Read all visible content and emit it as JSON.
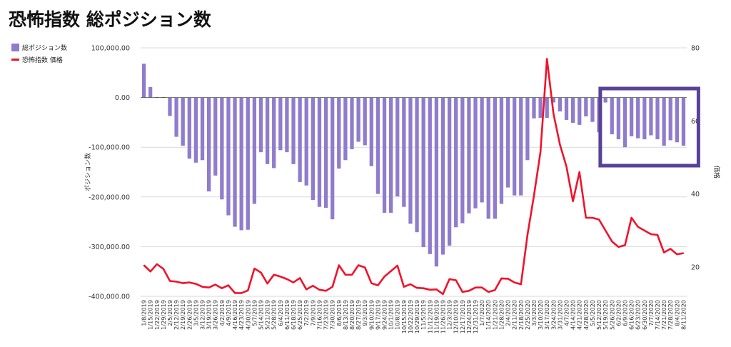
{
  "title": "恐怖指数 総ポジション数",
  "legend": {
    "bar_label": "総ポジション数",
    "line_label": "恐怖指数 価格"
  },
  "colors": {
    "bar": "#8f7ccc",
    "line": "#f0132a",
    "highlight_box": "#5a4197",
    "grid": "#d9d9d9"
  },
  "chart_data": {
    "type": "bar+line",
    "categories": [
      "1/8/2019",
      "1/15/2019",
      "1/22/2019",
      "1/29/2019",
      "2/5/2019",
      "2/12/2019",
      "2/19/2019",
      "2/26/2019",
      "3/5/2019",
      "3/12/2019",
      "3/19/2019",
      "3/26/2019",
      "4/2/2019",
      "4/9/2019",
      "4/16/2019",
      "4/23/2019",
      "4/30/2019",
      "5/7/2019",
      "5/14/2019",
      "5/21/2019",
      "5/28/2019",
      "6/4/2019",
      "6/11/2019",
      "6/18/2019",
      "6/25/2019",
      "7/2/2019",
      "7/9/2019",
      "7/16/2019",
      "7/23/2019",
      "7/30/2019",
      "8/6/2019",
      "8/13/2019",
      "8/20/2019",
      "8/27/2019",
      "9/3/2019",
      "9/10/2019",
      "9/17/2019",
      "9/24/2019",
      "10/1/2019",
      "10/8/2019",
      "10/15/2019",
      "10/22/2019",
      "10/29/2019",
      "11/5/2019",
      "11/12/2019",
      "11/19/2019",
      "11/26/2019",
      "12/3/2019",
      "12/10/2019",
      "12/17/2019",
      "12/24/2019",
      "12/31/2019",
      "1/7/2020",
      "1/14/2020",
      "1/21/2020",
      "1/28/2020",
      "2/4/2020",
      "2/11/2020",
      "2/18/2020",
      "2/25/2020",
      "3/3/2020",
      "3/10/2020",
      "3/17/2020",
      "3/24/2020",
      "3/31/2020",
      "4/7/2020",
      "4/14/2020",
      "4/21/2020",
      "4/28/2020",
      "5/5/2020",
      "5/12/2020",
      "5/19/2020",
      "5/26/2020",
      "6/2/2020",
      "6/9/2020",
      "6/16/2020",
      "6/23/2020",
      "6/30/2020",
      "7/7/2020",
      "7/14/2020",
      "7/21/2020",
      "7/28/2020",
      "8/4/2020",
      "8/11/2020"
    ],
    "x_tick_labels": [
      "1/8/2019",
      "1/15/2019",
      "1/22/2019",
      "1/29/2019",
      "2/5/2019",
      "2/12/2019",
      "2/19/2019",
      "2/26/2019",
      "3/5/2019",
      "3/12/2019",
      "3/19/2019",
      "3/26/2019",
      "4/2/2019",
      "4/9/2019",
      "4/16/2019",
      "4/23/2019",
      "4/30/2019",
      "5/7/2019",
      "5/14/2019",
      "5/21/2019",
      "5/28/2019",
      "6/4/2019",
      "6/11/2019",
      "6/18/2019",
      "6/25/2019",
      "7/2/2019",
      "7/9/2019",
      "7/16/2019",
      "7/23/2019",
      "7/30/2019",
      "8/6/2019",
      "8/13/2019",
      "8/20/2019",
      "8/27/2019",
      "9/3/2019",
      "9/10/2019",
      "9/17/2019",
      "9/24/2019",
      "10/1/2019",
      "10/8/2019",
      "10/15/2019",
      "10/22/2019",
      "10/29/2019",
      "11/5/2019",
      "11/12/2019",
      "11/19/2019",
      "11/26/2019",
      "12/3/2019",
      "12/10/2019",
      "12/17/2019",
      "12/24/2019",
      "12/31/2019",
      "1/7/2020",
      "1/14/2020",
      "1/21/2020",
      "1/28/2020",
      "2/4/2020",
      "2/11/2020",
      "2/18/2020",
      "2/25/2020",
      "3/3/2020",
      "3/10/2020",
      "3/17/2020",
      "3/24/2020",
      "3/31/2020",
      "4/7/2020",
      "4/14/2020",
      "4/21/2020",
      "4/28/2020",
      "5/5/2020",
      "5/12/2020",
      "5/19/2020",
      "5/26/2020",
      "6/2/2020",
      "6/9/2020",
      "6/16/2020",
      "6/23/2020",
      "6/30/2020",
      "7/7/2020",
      "7/14/2020",
      "7/21/2020",
      "7/28/2020",
      "8/4/2020",
      "8/11/2020"
    ],
    "series": [
      {
        "name": "総ポジション数",
        "axis": "left",
        "values": [
          68000,
          21000,
          0,
          0,
          -37000,
          -79000,
          -97000,
          -123000,
          -131000,
          -126000,
          -189000,
          -157000,
          -205000,
          -237000,
          -260000,
          -267000,
          -266000,
          -214000,
          -110000,
          -134000,
          -142000,
          -106000,
          -110000,
          -134000,
          -170000,
          -177000,
          -206000,
          -220000,
          -222000,
          -245000,
          -143000,
          -126000,
          -104000,
          -89000,
          -96000,
          -138000,
          -194000,
          -232000,
          -232000,
          -199000,
          -220000,
          -254000,
          -271000,
          -301000,
          -315000,
          -340000,
          -316000,
          -298000,
          -261000,
          -253000,
          -233000,
          -223000,
          -211000,
          -244000,
          -244000,
          -214000,
          -181000,
          -197000,
          -197000,
          -126000,
          -42000,
          -41000,
          -41000,
          -10000,
          -28000,
          -45000,
          -51000,
          -55000,
          -38000,
          -49000,
          -70000,
          -10000,
          -74000,
          -84000,
          -100000,
          -78000,
          -82000,
          -84000,
          -76000,
          -84000,
          -97000,
          -86000,
          -90000,
          -97000
        ]
      },
      {
        "name": "恐怖指数 価格",
        "axis": "right",
        "values": [
          20.5,
          18.8,
          20.8,
          19.5,
          16.2,
          16.0,
          15.6,
          15.8,
          15.4,
          14.6,
          14.4,
          15.2,
          14.2,
          15.0,
          12.9,
          12.9,
          13.6,
          19.6,
          18.5,
          15.5,
          17.9,
          17.4,
          16.7,
          15.8,
          17.0,
          13.9,
          14.9,
          13.8,
          13.5,
          14.6,
          20.5,
          17.9,
          17.9,
          20.5,
          19.9,
          15.6,
          15.0,
          17.4,
          18.9,
          20.4,
          14.6,
          15.3,
          14.3,
          14.2,
          13.8,
          13.9,
          12.6,
          16.7,
          16.4,
          13.2,
          13.5,
          14.4,
          14.4,
          13.2,
          13.7,
          16.9,
          16.8,
          15.8,
          15.3,
          28.8,
          39.6,
          51.5,
          77.0,
          62.0,
          53.5,
          47.5,
          38.0,
          46.0,
          33.5,
          33.5,
          33.0,
          30.0,
          27.0,
          25.5,
          26.0,
          33.5,
          31.0,
          30.0,
          29.0,
          28.8,
          24.0,
          25.0,
          23.5,
          23.8
        ]
      }
    ],
    "y_left": {
      "ylim": [
        -400000,
        100000
      ],
      "ticks": [
        100000,
        0,
        -100000,
        -200000,
        -300000,
        -400000
      ],
      "tick_labels": [
        "100,000.00",
        "0.00",
        "-100,000.00",
        "-200,000.00",
        "-300,000.00",
        "-400,000.00"
      ],
      "label": "ポジション数"
    },
    "y_right": {
      "ylim": [
        12,
        80
      ],
      "ticks": [
        80,
        60,
        40,
        20
      ],
      "tick_labels": [
        "80",
        "60",
        "40",
        "20"
      ],
      "label": "価格"
    },
    "grid": true,
    "legend_position": "top-left",
    "highlight_range": {
      "from": "5/19/2020",
      "to": "8/11/2020"
    }
  }
}
